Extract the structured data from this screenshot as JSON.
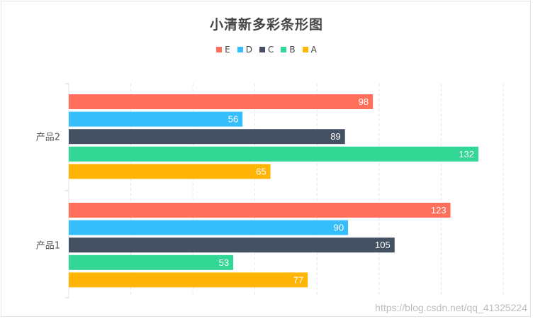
{
  "chart_data": {
    "type": "bar",
    "orientation": "horizontal",
    "title": "小清新多彩条形图",
    "categories": [
      "产品1",
      "产品2"
    ],
    "series": [
      {
        "name": "E",
        "color": "#ff6f5b",
        "values": [
          123,
          98
        ]
      },
      {
        "name": "D",
        "color": "#36bdfb",
        "values": [
          90,
          56
        ]
      },
      {
        "name": "C",
        "color": "#435163",
        "values": [
          105,
          89
        ]
      },
      {
        "name": "B",
        "color": "#32d796",
        "values": [
          53,
          132
        ]
      },
      {
        "name": "A",
        "color": "#ffb506",
        "values": [
          77,
          65
        ]
      }
    ],
    "xlim": [
      0,
      140
    ],
    "grid": true,
    "legend_position": "top"
  },
  "watermark": "https://blog.csdn.net/qq_41325224"
}
